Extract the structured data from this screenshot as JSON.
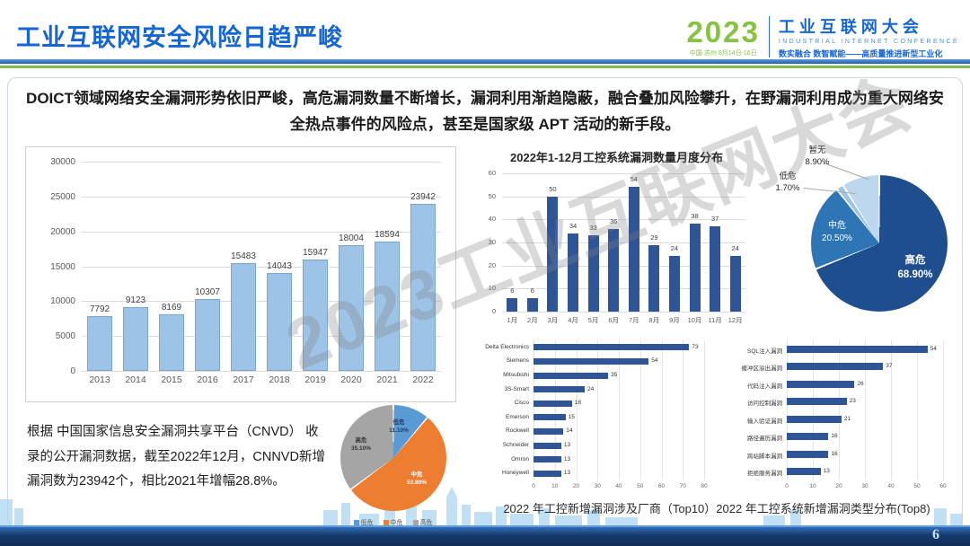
{
  "header": {
    "title": "工业互联网安全风险日趋严峻",
    "logo": {
      "year": "2023",
      "event_info": "中国·苏州 8月14日-16日",
      "name_cn": "工业互联网大会",
      "name_en": "INDUSTRIAL INTERNET CONFERENCE",
      "slogan": "数实融合  数智赋能——高质量推进新型工业化"
    }
  },
  "banner": {
    "text": "DOICT领域网络安全漏洞形势依旧严峻，高危漏洞数量不断增长，漏洞利用渐趋隐蔽，融合叠加风险攀升，在野漏洞利用成为重大网络安全热点事件的风险点，甚至是国家级 APT 活动的新手段。"
  },
  "watermark": "2023工业互联网大会",
  "note": {
    "text": "根据 中国国家信息安全漏洞共享平台（CNVD） 收录的公开漏洞数据，截至2022年12月，CNNVD新增漏洞数为23942个，相比2021年增幅28.8%。"
  },
  "caption": "2022 年工控新增漏洞涉及厂商（Top10）2022 年工控系统新增漏洞类型分布(Top8)",
  "page_number": "6",
  "colors": {
    "brand_blue": "#1565d2",
    "brand_green": "#86c340",
    "yearly_bar": "#9dc3e6",
    "monthly_bar": "#2f5597",
    "hbar": "#2f5597",
    "pie_high": "#1f4e8f",
    "pie_medium": "#2e75b6",
    "pie_low": "#9dc3e6",
    "pie_none": "#bdd7ee",
    "cnvd_low": "#5b9bd5",
    "cnvd_medium": "#ed7d31",
    "cnvd_high": "#a5a5a5"
  },
  "chart_data": [
    {
      "id": "cnvd_yearly_vulns",
      "type": "bar",
      "title": "",
      "categories": [
        "2013",
        "2014",
        "2015",
        "2016",
        "2017",
        "2018",
        "2019",
        "2020",
        "2021",
        "2022"
      ],
      "values": [
        7792,
        9123,
        8169,
        10307,
        15483,
        14043,
        15947,
        18004,
        18594,
        23942
      ],
      "xlabel": "",
      "ylabel": "",
      "ylim": [
        0,
        30000
      ],
      "ytick_step": 5000,
      "bar_color": "#9dc3e6",
      "grid": true,
      "legend_position": "none"
    },
    {
      "id": "ics_monthly_vulns_2022",
      "type": "bar",
      "title": "2022年1-12月工控系统漏洞数量月度分布",
      "categories": [
        "1月",
        "2月",
        "3月",
        "4月",
        "5月",
        "6月",
        "7月",
        "8月",
        "9月",
        "10月",
        "11月",
        "12月"
      ],
      "values": [
        6,
        6,
        50,
        34,
        33,
        36,
        54,
        29,
        24,
        38,
        37,
        24
      ],
      "xlabel": "",
      "ylabel": "",
      "ylim": [
        0,
        60
      ],
      "ytick_step": 10,
      "bar_color": "#2f5597",
      "grid": true,
      "legend_position": "none"
    },
    {
      "id": "ics_vuln_severity_pie",
      "type": "pie",
      "title": "",
      "labels": [
        "高危",
        "中危",
        "低危",
        "暂无"
      ],
      "values": [
        68.9,
        20.5,
        1.7,
        8.9
      ],
      "pct": [
        "68.90%",
        "20.50%",
        "1.70%",
        "8.90%"
      ],
      "colors": [
        "#1f4e8f",
        "#2e75b6",
        "#9dc3e6",
        "#bdd7ee"
      ],
      "gap": 0.8,
      "legend_position": "none"
    },
    {
      "id": "cnvd_severity_pie",
      "type": "pie",
      "title": "",
      "labels": [
        "低危",
        "中危",
        "高危"
      ],
      "values": [
        11.1,
        53.8,
        35.1
      ],
      "pct": [
        "11.10%",
        "53.80%",
        "35.10%"
      ],
      "colors": [
        "#5b9bd5",
        "#ed7d31",
        "#a5a5a5"
      ],
      "gap": 0.8,
      "legend_position": "bottom"
    },
    {
      "id": "ics_new_vulns_vendors_top10",
      "type": "bar-horizontal",
      "title": "2022 年工控新增漏洞涉及厂商（Top10）",
      "categories": [
        "Delta Electronics",
        "Siemens",
        "Mitsubishi",
        "3S-Smart",
        "Cisco",
        "Emerson",
        "Rockwell",
        "Schneider",
        "Omron",
        "Honeywell"
      ],
      "values": [
        73,
        54,
        35,
        24,
        18,
        15,
        14,
        13,
        13,
        13
      ],
      "xlim": [
        0,
        80
      ],
      "xtick_step": 10,
      "bar_color": "#2f5597",
      "grid": true,
      "legend_position": "none"
    },
    {
      "id": "ics_new_vuln_types_top8",
      "type": "bar-horizontal",
      "title": "2022 年工控系统新增漏洞类型分布(Top8)",
      "categories": [
        "SQL注入漏洞",
        "缓冲区溢出漏洞",
        "代码注入漏洞",
        "访问控制漏洞",
        "输入验证漏洞",
        "路径遍历漏洞",
        "跨站脚本漏洞",
        "拒绝服务漏洞"
      ],
      "values": [
        54,
        37,
        26,
        23,
        21,
        16,
        16,
        13
      ],
      "xlim": [
        0,
        60
      ],
      "xtick_step": 10,
      "bar_color": "#2f5597",
      "grid": true,
      "legend_position": "none"
    }
  ]
}
